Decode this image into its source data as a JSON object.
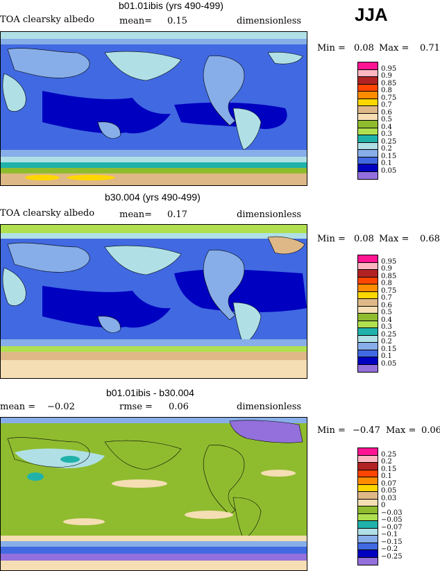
{
  "season": "JJA",
  "panels": [
    {
      "title": "b01.01ibis (yrs 490-499)",
      "left_label": "TOA clearsky albedo",
      "stat_label": "mean=",
      "stat_value": "0.15",
      "units": "dimensionless",
      "min_label": "Min =",
      "min_value": "0.08",
      "max_label": "Max =",
      "max_value": "0.71",
      "legend": {
        "labels": [
          "0.95",
          "0.9",
          "0.85",
          "0.8",
          "0.75",
          "0.7",
          "0.6",
          "0.5",
          "0.4",
          "0.3",
          "0.25",
          "0.2",
          "0.15",
          "0.1",
          "0.05"
        ],
        "colors": [
          "#ff1493",
          "#ffb6c1",
          "#b22222",
          "#ff4500",
          "#ff8c00",
          "#ffd700",
          "#deb887",
          "#f5deb3",
          "#8fbc2f",
          "#b0e050",
          "#20b2aa",
          "#b0e0e6",
          "#87aee8",
          "#4169e1",
          "#0000c0",
          "#9370db"
        ]
      }
    },
    {
      "title": "b30.004 (yrs 490-499)",
      "left_label": "TOA clearsky albedo",
      "stat_label": "mean=",
      "stat_value": "0.17",
      "units": "dimensionless",
      "min_label": "Min =",
      "min_value": "0.08",
      "max_label": "Max =",
      "max_value": "0.68",
      "legend": {
        "labels": [
          "0.95",
          "0.9",
          "0.85",
          "0.8",
          "0.75",
          "0.7",
          "0.6",
          "0.5",
          "0.4",
          "0.3",
          "0.25",
          "0.2",
          "0.15",
          "0.1",
          "0.05"
        ],
        "colors": [
          "#ff1493",
          "#ffb6c1",
          "#b22222",
          "#ff4500",
          "#ff8c00",
          "#ffd700",
          "#deb887",
          "#f5deb3",
          "#8fbc2f",
          "#b0e050",
          "#20b2aa",
          "#b0e0e6",
          "#87aee8",
          "#4169e1",
          "#0000c0",
          "#9370db"
        ]
      }
    },
    {
      "title": "b01.01ibis - b30.004",
      "left_label": "mean =",
      "left_value": "−0.02",
      "stat_label": "rmse =",
      "stat_value": "0.06",
      "units": "dimensionless",
      "min_label": "Min =",
      "min_value": "−0.47",
      "max_label": "Max =",
      "max_value": "0.06",
      "legend": {
        "labels": [
          "0.25",
          "0.2",
          "0.15",
          "0.1",
          "0.07",
          "0.05",
          "0.03",
          "0",
          "−0.03",
          "−0.05",
          "−0.07",
          "−0.1",
          "−0.15",
          "−0.2",
          "−0.25"
        ],
        "colors": [
          "#ff1493",
          "#ffb6c1",
          "#b22222",
          "#ff4500",
          "#ff8c00",
          "#ffd700",
          "#deb887",
          "#f5deb3",
          "#8fbc2f",
          "#b0e050",
          "#20b2aa",
          "#b0e0e6",
          "#87aee8",
          "#4169e1",
          "#0000c0",
          "#9370db"
        ]
      }
    }
  ]
}
